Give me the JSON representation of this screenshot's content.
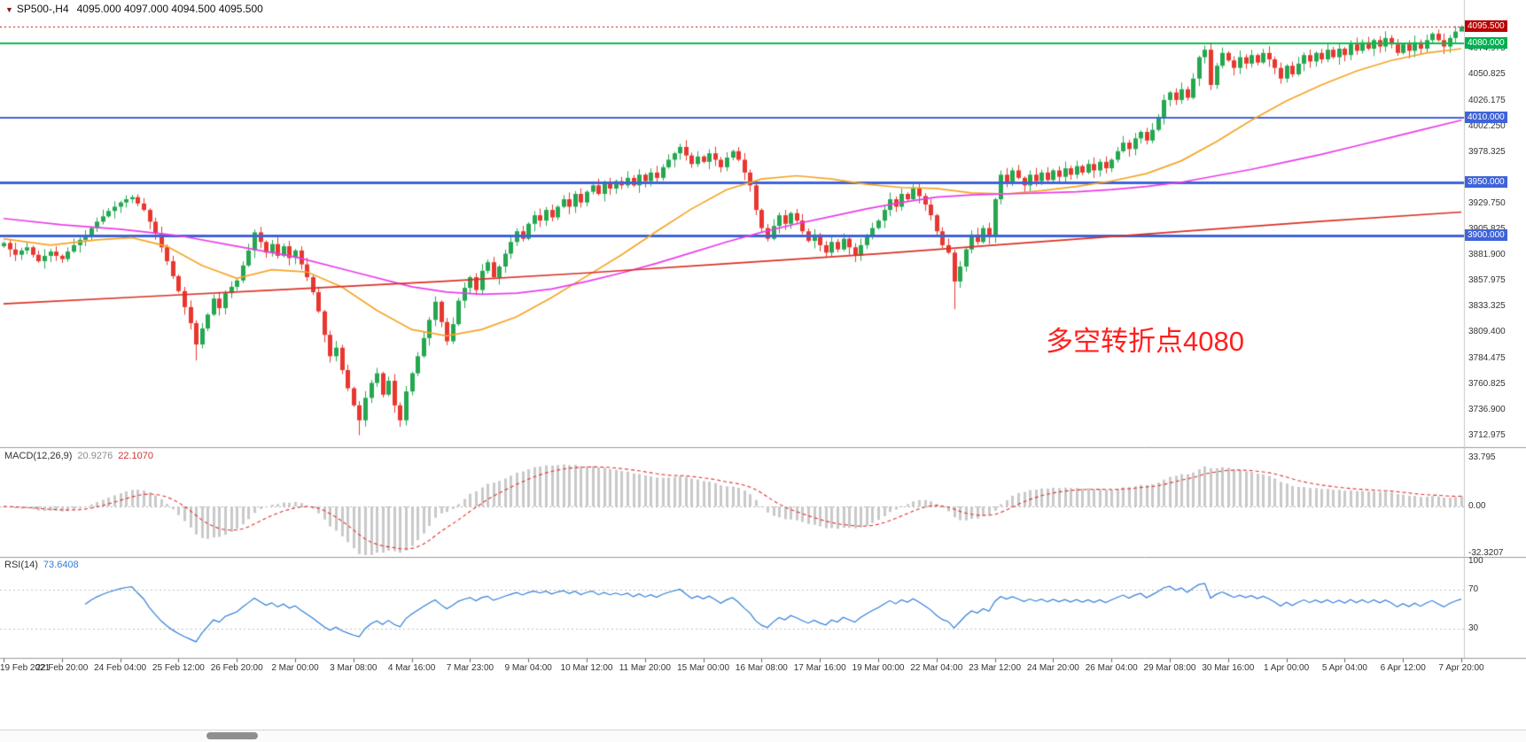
{
  "title": {
    "arrow_icon": "▼",
    "symbol": "SP500-,H4",
    "ohlc": "4095.000 4097.000 4094.500 4095.500"
  },
  "annotation": {
    "text": "多空转折点4080",
    "color": "#ff1f1f"
  },
  "indicators": {
    "macd": {
      "label": "MACD(12,26,9)",
      "main_value": "20.9276",
      "signal_value": "22.1070"
    },
    "rsi": {
      "label": "RSI(14)",
      "value": "73.6408"
    }
  },
  "chart_data": {
    "type": "candlestick",
    "title": "SP500-,H4",
    "symbol": "SP500-",
    "timeframe": "H4",
    "last_bar": {
      "open": 4095.0,
      "high": 4097.0,
      "low": 4094.5,
      "close": 4095.5
    },
    "bars_per_label": 10,
    "x_labels": [
      "19 Feb 2021",
      "22 Feb 20:00",
      "24 Feb 04:00",
      "25 Feb 12:00",
      "26 Feb 20:00",
      "2 Mar 00:00",
      "3 Mar 08:00",
      "4 Mar 16:00",
      "7 Mar 23:00",
      "9 Mar 04:00",
      "10 Mar 12:00",
      "11 Mar 20:00",
      "15 Mar 00:00",
      "16 Mar 08:00",
      "17 Mar 16:00",
      "19 Mar 00:00",
      "22 Mar 04:00",
      "23 Mar 12:00",
      "24 Mar 20:00",
      "26 Mar 04:00",
      "29 Mar 08:00",
      "30 Mar 16:00",
      "1 Apr 00:00",
      "5 Apr 04:00",
      "6 Apr 12:00",
      "7 Apr 20:00"
    ],
    "y_axis": {
      "min": 3706,
      "max": 4104,
      "labels": [
        {
          "text": "4074.975",
          "value": 4074.975
        },
        {
          "text": "4050.825",
          "value": 4050.825
        },
        {
          "text": "4026.175",
          "value": 4026.175
        },
        {
          "text": "4002.250",
          "value": 4002.25
        },
        {
          "text": "3978.325",
          "value": 3978.325
        },
        {
          "text": "3929.750",
          "value": 3929.75
        },
        {
          "text": "3905.825",
          "value": 3905.825
        },
        {
          "text": "3881.900",
          "value": 3881.9
        },
        {
          "text": "3857.975",
          "value": 3857.975
        },
        {
          "text": "3833.325",
          "value": 3833.325
        },
        {
          "text": "3809.400",
          "value": 3809.4
        },
        {
          "text": "3784.475",
          "value": 3784.475
        },
        {
          "text": "3760.825",
          "value": 3760.825
        },
        {
          "text": "3736.900",
          "value": 3736.9
        },
        {
          "text": "3712.975",
          "value": 3712.975
        }
      ]
    },
    "price_badges": [
      {
        "name": "current-price",
        "text": "4095.500",
        "value": 4095.5,
        "bg": "#b80000"
      },
      {
        "name": "level-4080",
        "text": "4080.000",
        "value": 4080,
        "bg": "#00b050"
      },
      {
        "name": "level-4010",
        "text": "4010.000",
        "value": 4010,
        "bg": "#3f63d8"
      },
      {
        "name": "level-3950",
        "text": "3950.000",
        "value": 3950,
        "bg": "#3f63d8"
      },
      {
        "name": "level-3900",
        "text": "3900.000",
        "value": 3900,
        "bg": "#3f63d8"
      }
    ],
    "hlines": [
      {
        "value": 4095.5,
        "color": "#c00000",
        "style": "dotted",
        "width": 1
      },
      {
        "value": 4080,
        "color": "#00c24a",
        "style": "solid",
        "width": 2
      },
      {
        "value": 4010,
        "color": "#3f63d8",
        "style": "solid",
        "width": 2
      },
      {
        "value": 3950,
        "color": "#3f63d8",
        "style": "solid",
        "width": 3
      },
      {
        "value": 3900,
        "color": "#3f63d8",
        "style": "solid",
        "width": 3
      }
    ],
    "candles": {
      "first_open": 3890,
      "up_color": "#25a750",
      "down_color": "#e8372f",
      "closes": [
        3893,
        3887,
        3882,
        3886,
        3889,
        3882,
        3876,
        3881,
        3885,
        3881,
        3878,
        3885,
        3891,
        3896,
        3900,
        3907,
        3913,
        3918,
        3923,
        3927,
        3931,
        3934,
        3936,
        3930,
        3924,
        3913,
        3902,
        3889,
        3876,
        3862,
        3848,
        3833,
        3818,
        3798,
        3813,
        3826,
        3841,
        3832,
        3846,
        3852,
        3858,
        3872,
        3886,
        3903,
        3894,
        3884,
        3892,
        3881,
        3890,
        3879,
        3886,
        3873,
        3861,
        3847,
        3829,
        3807,
        3787,
        3795,
        3774,
        3757,
        3741,
        3727,
        3748,
        3762,
        3771,
        3751,
        3764,
        3741,
        3727,
        3754,
        3771,
        3787,
        3804,
        3821,
        3838,
        3819,
        3801,
        3817,
        3839,
        3851,
        3861,
        3849,
        3867,
        3875,
        3861,
        3871,
        3883,
        3894,
        3904,
        3897,
        3911,
        3919,
        3914,
        3924,
        3917,
        3927,
        3934,
        3927,
        3939,
        3931,
        3941,
        3947,
        3939,
        3949,
        3944,
        3951,
        3947,
        3954,
        3947,
        3957,
        3951,
        3959,
        3954,
        3964,
        3971,
        3977,
        3983,
        3975,
        3967,
        3974,
        3969,
        3977,
        3971,
        3964,
        3973,
        3979,
        3971,
        3959,
        3947,
        3924,
        3907,
        3897,
        3909,
        3919,
        3911,
        3921,
        3914,
        3904,
        3895,
        3901,
        3891,
        3884,
        3894,
        3887,
        3897,
        3889,
        3881,
        3891,
        3899,
        3907,
        3914,
        3924,
        3934,
        3927,
        3939,
        3934,
        3944,
        3937,
        3929,
        3919,
        3904,
        3891,
        3884,
        3857,
        3871,
        3887,
        3901,
        3894,
        3907,
        3899,
        3934,
        3957,
        3949,
        3961,
        3954,
        3947,
        3957,
        3951,
        3959,
        3952,
        3961,
        3955,
        3963,
        3957,
        3965,
        3959,
        3967,
        3961,
        3969,
        3963,
        3971,
        3979,
        3987,
        3981,
        3991,
        3997,
        3989,
        3999,
        4011,
        4027,
        4034,
        4027,
        4037,
        4029,
        4047,
        4067,
        4074,
        4041,
        4059,
        4071,
        4064,
        4057,
        4067,
        4061,
        4069,
        4062,
        4071,
        4065,
        4057,
        4047,
        4059,
        4051,
        4061,
        4069,
        4063,
        4071,
        4065,
        4074,
        4067,
        4075,
        4069,
        4079,
        4073,
        4081,
        4075,
        4083,
        4077,
        4085,
        4079,
        4071,
        4079,
        4073,
        4081,
        4075,
        4083,
        4089,
        4083,
        4077,
        4085,
        4091,
        4095.5
      ],
      "wick_overrides": {
        "22": {
          "high": 3938
        },
        "33": {
          "low": 3783
        },
        "61": {
          "low": 3713
        },
        "68": {
          "low": 3721
        },
        "116": {
          "high": 3986
        },
        "163": {
          "low": 3831
        },
        "206": {
          "high": 4078
        },
        "250": {
          "high": 4097,
          "low": 4094.5
        }
      }
    },
    "moving_averages": [
      {
        "name": "ma-fast",
        "color": "#f5a425",
        "points": [
          [
            0,
            3897
          ],
          [
            8,
            3891
          ],
          [
            16,
            3896
          ],
          [
            22,
            3898
          ],
          [
            28,
            3890
          ],
          [
            34,
            3872
          ],
          [
            40,
            3860
          ],
          [
            46,
            3868
          ],
          [
            52,
            3866
          ],
          [
            58,
            3852
          ],
          [
            64,
            3830
          ],
          [
            70,
            3812
          ],
          [
            76,
            3806
          ],
          [
            82,
            3812
          ],
          [
            88,
            3824
          ],
          [
            94,
            3842
          ],
          [
            100,
            3862
          ],
          [
            106,
            3882
          ],
          [
            112,
            3904
          ],
          [
            118,
            3925
          ],
          [
            124,
            3943
          ],
          [
            130,
            3953
          ],
          [
            136,
            3956
          ],
          [
            142,
            3953
          ],
          [
            148,
            3948
          ],
          [
            154,
            3945
          ],
          [
            160,
            3944
          ],
          [
            166,
            3940
          ],
          [
            172,
            3939
          ],
          [
            178,
            3942
          ],
          [
            184,
            3946
          ],
          [
            190,
            3951
          ],
          [
            196,
            3958
          ],
          [
            202,
            3970
          ],
          [
            208,
            3988
          ],
          [
            214,
            4008
          ],
          [
            220,
            4026
          ],
          [
            226,
            4041
          ],
          [
            232,
            4054
          ],
          [
            238,
            4064
          ],
          [
            244,
            4071
          ],
          [
            250,
            4075
          ]
        ]
      },
      {
        "name": "ma-mid",
        "color": "#ea3ce9",
        "points": [
          [
            0,
            3916
          ],
          [
            10,
            3910
          ],
          [
            20,
            3906
          ],
          [
            30,
            3900
          ],
          [
            40,
            3890
          ],
          [
            50,
            3880
          ],
          [
            60,
            3866
          ],
          [
            70,
            3852
          ],
          [
            76,
            3847
          ],
          [
            82,
            3845
          ],
          [
            88,
            3846
          ],
          [
            94,
            3850
          ],
          [
            100,
            3857
          ],
          [
            106,
            3865
          ],
          [
            112,
            3874
          ],
          [
            118,
            3884
          ],
          [
            124,
            3894
          ],
          [
            130,
            3903
          ],
          [
            136,
            3911
          ],
          [
            142,
            3918
          ],
          [
            148,
            3925
          ],
          [
            154,
            3931
          ],
          [
            160,
            3936
          ],
          [
            166,
            3938
          ],
          [
            172,
            3939
          ],
          [
            178,
            3940
          ],
          [
            184,
            3941
          ],
          [
            190,
            3943
          ],
          [
            196,
            3946
          ],
          [
            202,
            3950
          ],
          [
            208,
            3956
          ],
          [
            214,
            3962
          ],
          [
            220,
            3969
          ],
          [
            226,
            3976
          ],
          [
            232,
            3984
          ],
          [
            238,
            3992
          ],
          [
            244,
            4000
          ],
          [
            250,
            4008
          ]
        ]
      },
      {
        "name": "ma-slow",
        "color": "#d93025",
        "points": [
          [
            0,
            3836
          ],
          [
            25,
            3843
          ],
          [
            50,
            3850
          ],
          [
            75,
            3857
          ],
          [
            100,
            3865
          ],
          [
            125,
            3874
          ],
          [
            150,
            3883
          ],
          [
            175,
            3893
          ],
          [
            200,
            3903
          ],
          [
            225,
            3913
          ],
          [
            250,
            3922
          ]
        ]
      }
    ],
    "macd": {
      "fast": 12,
      "slow": 26,
      "signal": 9,
      "range": [
        -35,
        35
      ],
      "histogram_color": "#c9c9c9",
      "signal_color": "#e03030",
      "axis_labels": [
        {
          "text": "33.795",
          "value": 33.795
        },
        {
          "text": "0.00",
          "value": 0
        },
        {
          "text": "-32.3207",
          "value": -32.3207
        }
      ]
    },
    "rsi": {
      "period": 14,
      "range": [
        0,
        100
      ],
      "levels": [
        70,
        30
      ],
      "line_color": "#2f7ed8",
      "axis_labels": [
        {
          "text": "100",
          "value": 100
        },
        {
          "text": "70",
          "value": 70
        },
        {
          "text": "30",
          "value": 30
        }
      ]
    }
  }
}
